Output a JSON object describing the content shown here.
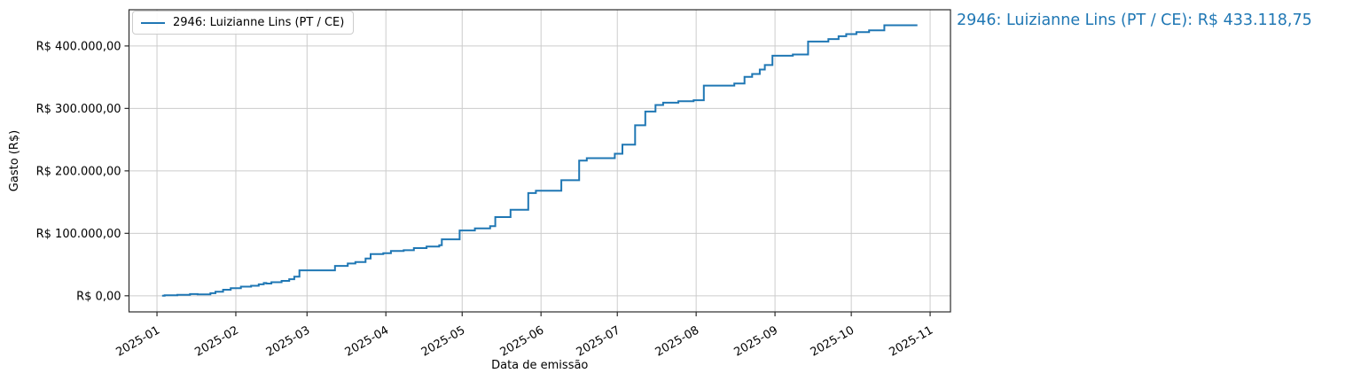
{
  "figure": {
    "side_label": "2946: Luizianne Lins (PT / CE): R$ 433.118,75"
  },
  "legend": {
    "label": "2946: Luizianne Lins (PT / CE)"
  },
  "chart_data": {
    "type": "line",
    "step": "post",
    "title": "",
    "xlabel": "Data de emissão",
    "ylabel": "Gasto (R$)",
    "grid": true,
    "legend_position": "upper-left-inside",
    "line_color": "#1f77b4",
    "grid_color": "#cccccc",
    "spine_color": "#2b2b2b",
    "text_color": "#000000",
    "x_tick_labels": [
      "2025-01",
      "2025-02",
      "2025-03",
      "2025-04",
      "2025-05",
      "2025-06",
      "2025-07",
      "2025-08",
      "2025-09",
      "2025-10",
      "2025-11"
    ],
    "x_tick_dates": [
      "2025-01-01",
      "2025-02-01",
      "2025-03-01",
      "2025-04-01",
      "2025-05-01",
      "2025-06-01",
      "2025-07-01",
      "2025-08-01",
      "2025-09-01",
      "2025-10-01",
      "2025-11-01"
    ],
    "y_ticks": [
      0,
      100000,
      200000,
      300000,
      400000
    ],
    "y_tick_labels": [
      "R$ 0,00",
      "R$ 100.000,00",
      "R$ 200.000,00",
      "R$ 300.000,00",
      "R$ 400.000,00"
    ],
    "xlim_dates": [
      "2024-12-21",
      "2025-11-09"
    ],
    "ylim": [
      -25800,
      458000
    ],
    "series": [
      {
        "name": "2946: Luizianne Lins (PT / CE)",
        "final_value": 433118.75,
        "final_value_label": "R$ 433.118,75",
        "points": [
          [
            "2025-01-03",
            0
          ],
          [
            "2025-01-04",
            900
          ],
          [
            "2025-01-09",
            1600
          ],
          [
            "2025-01-14",
            2700
          ],
          [
            "2025-01-17",
            2300
          ],
          [
            "2025-01-22",
            4100
          ],
          [
            "2025-01-24",
            6500
          ],
          [
            "2025-01-27",
            9700
          ],
          [
            "2025-01-30",
            12200
          ],
          [
            "2025-02-03",
            14600
          ],
          [
            "2025-02-07",
            16100
          ],
          [
            "2025-02-10",
            18300
          ],
          [
            "2025-02-12",
            20500
          ],
          [
            "2025-02-13",
            19600
          ],
          [
            "2025-02-15",
            21700
          ],
          [
            "2025-02-19",
            23900
          ],
          [
            "2025-02-22",
            26600
          ],
          [
            "2025-02-24",
            30500
          ],
          [
            "2025-02-26",
            40800
          ],
          [
            "2025-03-12",
            47900
          ],
          [
            "2025-03-17",
            51700
          ],
          [
            "2025-03-20",
            54000
          ],
          [
            "2025-03-24",
            59700
          ],
          [
            "2025-03-26",
            66800
          ],
          [
            "2025-03-31",
            68200
          ],
          [
            "2025-04-03",
            71600
          ],
          [
            "2025-04-08",
            73000
          ],
          [
            "2025-04-12",
            76300
          ],
          [
            "2025-04-17",
            78700
          ],
          [
            "2025-04-22",
            80900
          ],
          [
            "2025-04-23",
            90400
          ],
          [
            "2025-04-30",
            104600
          ],
          [
            "2025-05-06",
            107800
          ],
          [
            "2025-05-12",
            111600
          ],
          [
            "2025-05-14",
            126000
          ],
          [
            "2025-05-20",
            137600
          ],
          [
            "2025-05-27",
            164500
          ],
          [
            "2025-05-30",
            168300
          ],
          [
            "2025-06-09",
            185000
          ],
          [
            "2025-06-16",
            216500
          ],
          [
            "2025-06-19",
            220400
          ],
          [
            "2025-06-30",
            227500
          ],
          [
            "2025-07-03",
            242000
          ],
          [
            "2025-07-08",
            273000
          ],
          [
            "2025-07-12",
            295000
          ],
          [
            "2025-07-16",
            305500
          ],
          [
            "2025-07-19",
            309200
          ],
          [
            "2025-07-25",
            311600
          ],
          [
            "2025-07-31",
            313100
          ],
          [
            "2025-08-04",
            336500
          ],
          [
            "2025-08-16",
            339800
          ],
          [
            "2025-08-20",
            350400
          ],
          [
            "2025-08-23",
            355100
          ],
          [
            "2025-08-26",
            362300
          ],
          [
            "2025-08-28",
            369400
          ],
          [
            "2025-08-31",
            384400
          ],
          [
            "2025-09-08",
            386300
          ],
          [
            "2025-09-14",
            407000
          ],
          [
            "2025-09-22",
            411000
          ],
          [
            "2025-09-26",
            415600
          ],
          [
            "2025-09-29",
            419000
          ],
          [
            "2025-10-03",
            422300
          ],
          [
            "2025-10-08",
            425100
          ],
          [
            "2025-10-14",
            433118.75
          ],
          [
            "2025-10-27",
            433118.75
          ]
        ]
      }
    ]
  }
}
